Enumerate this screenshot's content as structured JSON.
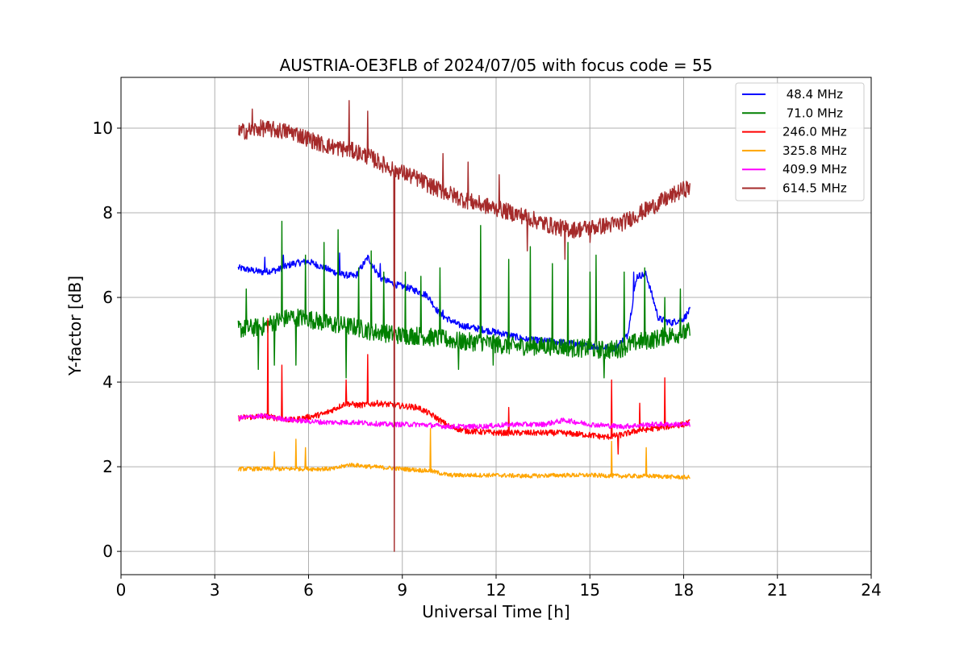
{
  "chart_data": {
    "type": "line",
    "title": "AUSTRIA-OE3FLB of 2024/07/05 with focus code = 55",
    "xlabel": "Universal Time [h]",
    "ylabel": "Y-factor [dB]",
    "xlim": [
      0,
      24
    ],
    "ylim": [
      -0.55,
      11.2
    ],
    "xticks": [
      0,
      3,
      6,
      9,
      12,
      15,
      18,
      21,
      24
    ],
    "yticks": [
      0,
      2,
      4,
      6,
      8,
      10
    ],
    "grid": true,
    "legend_position": "top-right",
    "series": [
      {
        "name": " 48.4 MHz",
        "color": "#0000ff",
        "x": [
          3.75,
          4.5,
          5.0,
          5.5,
          6.0,
          6.5,
          7.0,
          7.5,
          7.9,
          8.3,
          8.8,
          9.3,
          9.8,
          10.2,
          10.8,
          11.5,
          12.2,
          13.0,
          14.0,
          15.0,
          15.8,
          16.2,
          16.5,
          16.8,
          17.2,
          17.6,
          18.0,
          18.2
        ],
        "y": [
          6.7,
          6.6,
          6.65,
          6.8,
          6.85,
          6.7,
          6.55,
          6.5,
          6.95,
          6.45,
          6.3,
          6.2,
          6.05,
          5.6,
          5.35,
          5.25,
          5.15,
          5.0,
          4.95,
          4.85,
          4.8,
          5.1,
          6.5,
          6.55,
          5.5,
          5.4,
          5.5,
          5.7
        ],
        "noise": 0.08,
        "spikes": [
          [
            4.6,
            6.95
          ],
          [
            5.2,
            7.0
          ],
          [
            7.0,
            7.05
          ],
          [
            8.3,
            6.8
          ],
          [
            10.3,
            5.7
          ],
          [
            16.4,
            6.6
          ]
        ]
      },
      {
        "name": " 71.0 MHz",
        "color": "#008000",
        "x": [
          3.75,
          4.5,
          5.0,
          5.5,
          6.0,
          6.5,
          7.0,
          7.5,
          8.0,
          8.5,
          9.0,
          9.5,
          10.0,
          10.5,
          11.0,
          11.5,
          12.0,
          12.5,
          13.0,
          13.5,
          14.0,
          14.5,
          15.0,
          15.5,
          16.0,
          16.5,
          17.0,
          17.5,
          18.0,
          18.2
        ],
        "y": [
          5.25,
          5.3,
          5.45,
          5.55,
          5.5,
          5.4,
          5.35,
          5.3,
          5.2,
          5.15,
          5.1,
          5.1,
          5.05,
          5.0,
          4.95,
          4.95,
          4.9,
          4.85,
          4.85,
          4.85,
          4.85,
          4.8,
          4.8,
          4.75,
          4.8,
          4.95,
          5.0,
          5.1,
          5.15,
          5.2
        ],
        "noise": 0.22,
        "spikes": [
          [
            4.0,
            6.2
          ],
          [
            4.4,
            4.3
          ],
          [
            4.9,
            4.4
          ],
          [
            5.15,
            7.8
          ],
          [
            5.6,
            4.4
          ],
          [
            5.9,
            7.0
          ],
          [
            6.5,
            7.3
          ],
          [
            6.8,
            5.2
          ],
          [
            6.95,
            7.6
          ],
          [
            7.2,
            4.1
          ],
          [
            7.6,
            6.7
          ],
          [
            8.0,
            7.1
          ],
          [
            8.4,
            6.6
          ],
          [
            9.1,
            6.6
          ],
          [
            9.6,
            6.5
          ],
          [
            10.2,
            6.7
          ],
          [
            10.8,
            4.3
          ],
          [
            11.5,
            7.7
          ],
          [
            11.9,
            4.4
          ],
          [
            12.4,
            6.9
          ],
          [
            13.1,
            7.2
          ],
          [
            13.8,
            6.8
          ],
          [
            14.3,
            7.3
          ],
          [
            15.0,
            6.6
          ],
          [
            15.2,
            7.0
          ],
          [
            15.45,
            4.1
          ],
          [
            16.1,
            6.6
          ],
          [
            16.75,
            6.7
          ],
          [
            17.4,
            6.0
          ],
          [
            17.9,
            6.2
          ]
        ]
      },
      {
        "name": "246.0 MHz",
        "color": "#ff0000",
        "x": [
          3.75,
          4.5,
          5.5,
          6.5,
          7.2,
          7.6,
          8.2,
          8.8,
          9.5,
          10.0,
          10.5,
          11.0,
          12.0,
          13.0,
          14.0,
          15.0,
          15.5,
          16.0,
          16.5,
          17.0,
          17.5,
          18.0,
          18.2
        ],
        "y": [
          3.15,
          3.2,
          3.1,
          3.25,
          3.5,
          3.45,
          3.5,
          3.45,
          3.4,
          3.2,
          2.95,
          2.85,
          2.8,
          2.8,
          2.8,
          2.75,
          2.7,
          2.75,
          2.85,
          2.9,
          2.95,
          3.0,
          3.05
        ],
        "noise": 0.07,
        "spikes": [
          [
            4.7,
            5.5
          ],
          [
            5.15,
            4.4
          ],
          [
            7.2,
            4.05
          ],
          [
            7.9,
            4.65
          ],
          [
            12.4,
            3.4
          ],
          [
            15.7,
            4.05
          ],
          [
            15.9,
            2.3
          ],
          [
            16.6,
            3.5
          ],
          [
            17.4,
            4.1
          ]
        ]
      },
      {
        "name": "325.8 MHz",
        "color": "#ffa500",
        "x": [
          3.75,
          5.0,
          6.0,
          6.8,
          7.3,
          8.0,
          9.0,
          9.9,
          10.5,
          12.0,
          13.0,
          14.0,
          15.0,
          16.0,
          17.0,
          18.0,
          18.2
        ],
        "y": [
          1.95,
          1.95,
          1.95,
          1.95,
          2.05,
          2.0,
          1.95,
          1.9,
          1.8,
          1.8,
          1.78,
          1.8,
          1.8,
          1.78,
          1.78,
          1.75,
          1.75
        ],
        "noise": 0.05,
        "spikes": [
          [
            4.9,
            2.35
          ],
          [
            5.6,
            2.65
          ],
          [
            5.9,
            2.45
          ],
          [
            9.9,
            2.9
          ],
          [
            15.7,
            2.6
          ],
          [
            16.8,
            2.45
          ]
        ]
      },
      {
        "name": "409.9 MHz",
        "color": "#ff00ff",
        "x": [
          3.75,
          4.5,
          5.5,
          6.5,
          7.5,
          8.5,
          9.5,
          10.5,
          11.5,
          12.5,
          13.5,
          14.2,
          15.0,
          16.0,
          17.0,
          18.0,
          18.2
        ],
        "y": [
          3.15,
          3.2,
          3.1,
          3.05,
          3.05,
          3.0,
          3.0,
          2.95,
          2.95,
          3.0,
          3.0,
          3.1,
          3.0,
          2.95,
          3.0,
          3.0,
          3.0
        ],
        "noise": 0.06,
        "spikes": []
      },
      {
        "name": "614.5 MHz",
        "color": "#a52a2a",
        "x": [
          3.75,
          4.5,
          5.5,
          6.5,
          7.5,
          8.0,
          8.5,
          9.0,
          9.5,
          10.0,
          10.5,
          11.0,
          11.5,
          12.0,
          12.5,
          13.0,
          13.5,
          14.0,
          14.5,
          15.0,
          15.5,
          16.0,
          16.5,
          17.0,
          17.5,
          18.0,
          18.2
        ],
        "y": [
          9.9,
          10.0,
          9.9,
          9.6,
          9.45,
          9.3,
          9.1,
          8.95,
          8.8,
          8.6,
          8.45,
          8.3,
          8.2,
          8.1,
          8.0,
          7.9,
          7.75,
          7.65,
          7.6,
          7.65,
          7.7,
          7.75,
          7.95,
          8.15,
          8.35,
          8.55,
          8.6
        ],
        "noise": 0.2,
        "spikes": [
          [
            4.2,
            10.45
          ],
          [
            7.3,
            10.65
          ],
          [
            7.9,
            10.4
          ],
          [
            8.75,
            0.0
          ],
          [
            10.3,
            9.4
          ],
          [
            11.1,
            9.2
          ],
          [
            12.1,
            8.9
          ],
          [
            13.0,
            7.1
          ],
          [
            14.2,
            6.9
          ],
          [
            15.0,
            7.3
          ]
        ]
      }
    ]
  }
}
